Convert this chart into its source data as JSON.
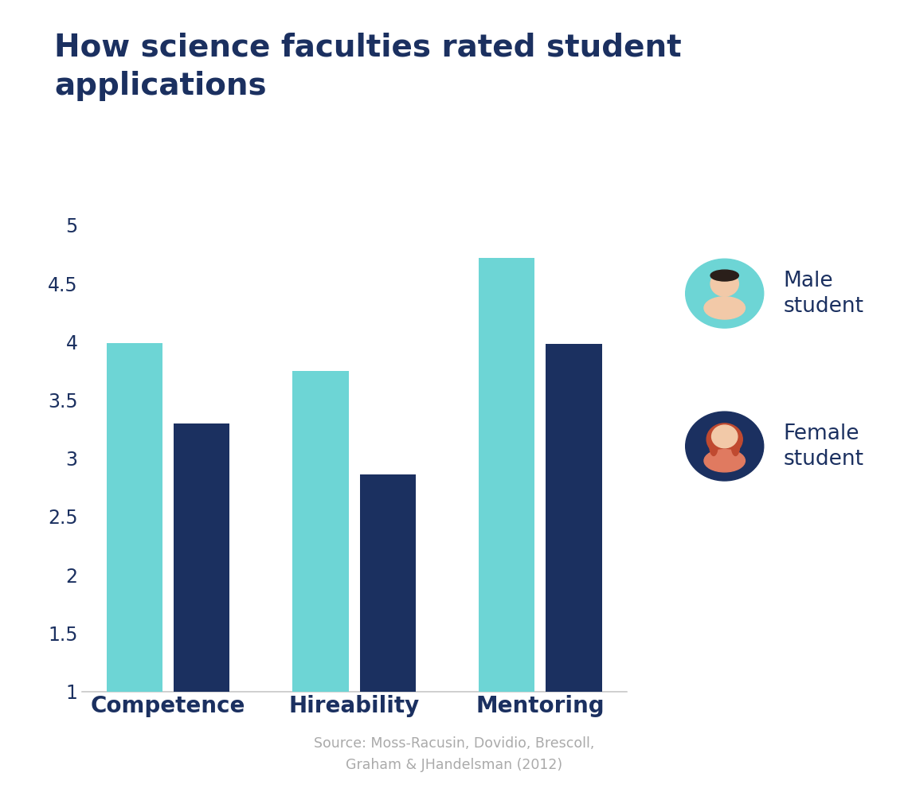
{
  "title": "How science faculties rated student\napplications",
  "categories": [
    "Competence",
    "Hireability",
    "Mentoring"
  ],
  "male_values": [
    3.99,
    3.75,
    4.72
  ],
  "female_values": [
    3.3,
    2.86,
    3.98
  ],
  "male_color": "#6DD5D5",
  "female_color": "#1B3060",
  "title_color": "#1B3060",
  "axis_color": "#1B3060",
  "tick_color": "#1B3060",
  "ylim_min": 1.0,
  "ylim_max": 5.0,
  "yticks": [
    1.0,
    1.5,
    2.0,
    2.5,
    3.0,
    3.5,
    4.0,
    4.5,
    5.0
  ],
  "ytick_labels": [
    "1",
    "1.5",
    "2",
    "2.5",
    "3",
    "3.5",
    "4",
    "4.5",
    "5"
  ],
  "source_text": "Source: Moss-Racusin, Dovidio, Brescoll,\nGraham & JHandelsman (2012)",
  "legend_male_label": "Male\nstudent",
  "legend_female_label": "Female\nstudent",
  "bar_width": 0.3,
  "background_color": "#ffffff",
  "skin_color": "#F2C9A8",
  "male_hair_color": "#2A1F1A",
  "female_hair_color": "#C04A30",
  "female_body_color": "#E07A60"
}
